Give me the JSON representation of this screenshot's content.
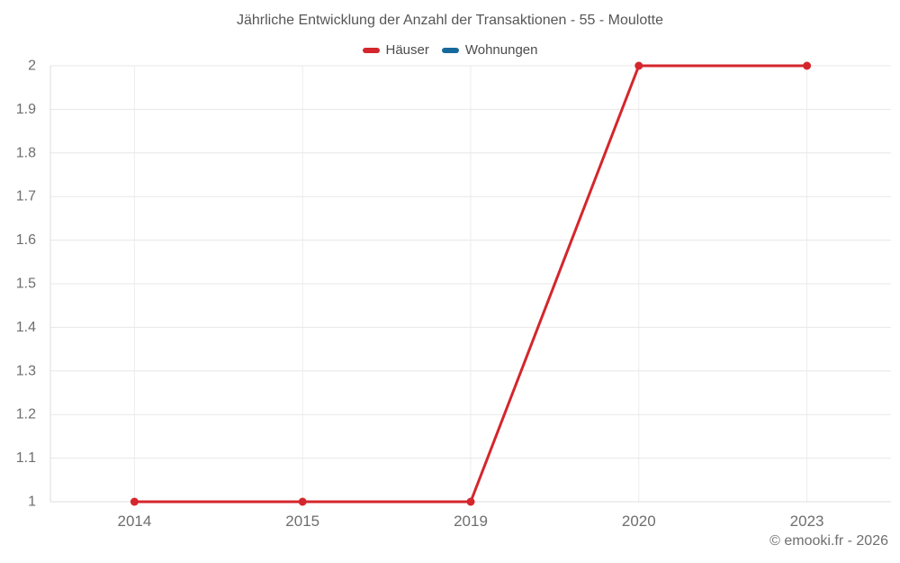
{
  "header": {
    "title": "Jährliche Entwicklung der Anzahl der Transaktionen - 55 - Moulotte"
  },
  "legend": [
    {
      "label": "Häuser",
      "color": "#d4262c"
    },
    {
      "label": "Wohnungen",
      "color": "#17699c"
    }
  ],
  "footer": {
    "copyright": "© emooki.fr - 2026"
  },
  "chart_data": {
    "type": "line",
    "title": "Jährliche Entwicklung der Anzahl der Transaktionen - 55 - Moulotte",
    "categories": [
      "2014",
      "2015",
      "2019",
      "2020",
      "2023"
    ],
    "series": [
      {
        "name": "Häuser",
        "color": "#d4262c",
        "values": [
          1,
          1,
          1,
          2,
          2
        ]
      },
      {
        "name": "Wohnungen",
        "color": "#17699c",
        "values": []
      }
    ],
    "xlabel": "",
    "ylabel": "",
    "ylim": [
      1,
      2
    ],
    "ytick_step": 0.1,
    "yticks": [
      "2",
      "1.9",
      "1.8",
      "1.7",
      "1.6",
      "1.5",
      "1.4",
      "1.3",
      "1.2",
      "1.1",
      "1"
    ],
    "grid": true,
    "legend_position": "top",
    "colors": {
      "grid_horizontal": "#e7e7e7",
      "grid_vertical": "#ededed",
      "axis": "#dcdcdc",
      "tick_label": "#6e6e6e"
    }
  }
}
